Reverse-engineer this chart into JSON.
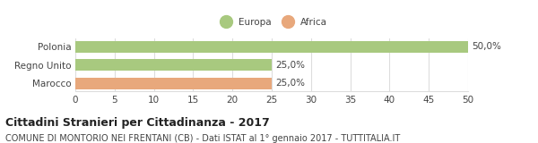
{
  "categories": [
    "Marocco",
    "Regno Unito",
    "Polonia"
  ],
  "values": [
    25,
    25,
    50
  ],
  "colors": [
    "#e8a87c",
    "#a8c97f",
    "#a8c97f"
  ],
  "labels": [
    "25,0%",
    "25,0%",
    "50,0%"
  ],
  "xlim": [
    0,
    50
  ],
  "xticks": [
    0,
    5,
    10,
    15,
    20,
    25,
    30,
    35,
    40,
    45,
    50
  ],
  "legend_entries": [
    {
      "label": "Europa",
      "color": "#a8c97f"
    },
    {
      "label": "Africa",
      "color": "#e8a87c"
    }
  ],
  "title": "Cittadini Stranieri per Cittadinanza - 2017",
  "subtitle": "COMUNE DI MONTORIO NEI FRENTANI (CB) - Dati ISTAT al 1° gennaio 2017 - TUTTITALIA.IT",
  "bar_height": 0.62,
  "background_color": "#ffffff",
  "grid_color": "#dddddd",
  "text_color": "#444444",
  "label_fontsize": 7.5,
  "tick_fontsize": 7.5,
  "title_fontsize": 9,
  "subtitle_fontsize": 7,
  "legend_marker_size": 10
}
